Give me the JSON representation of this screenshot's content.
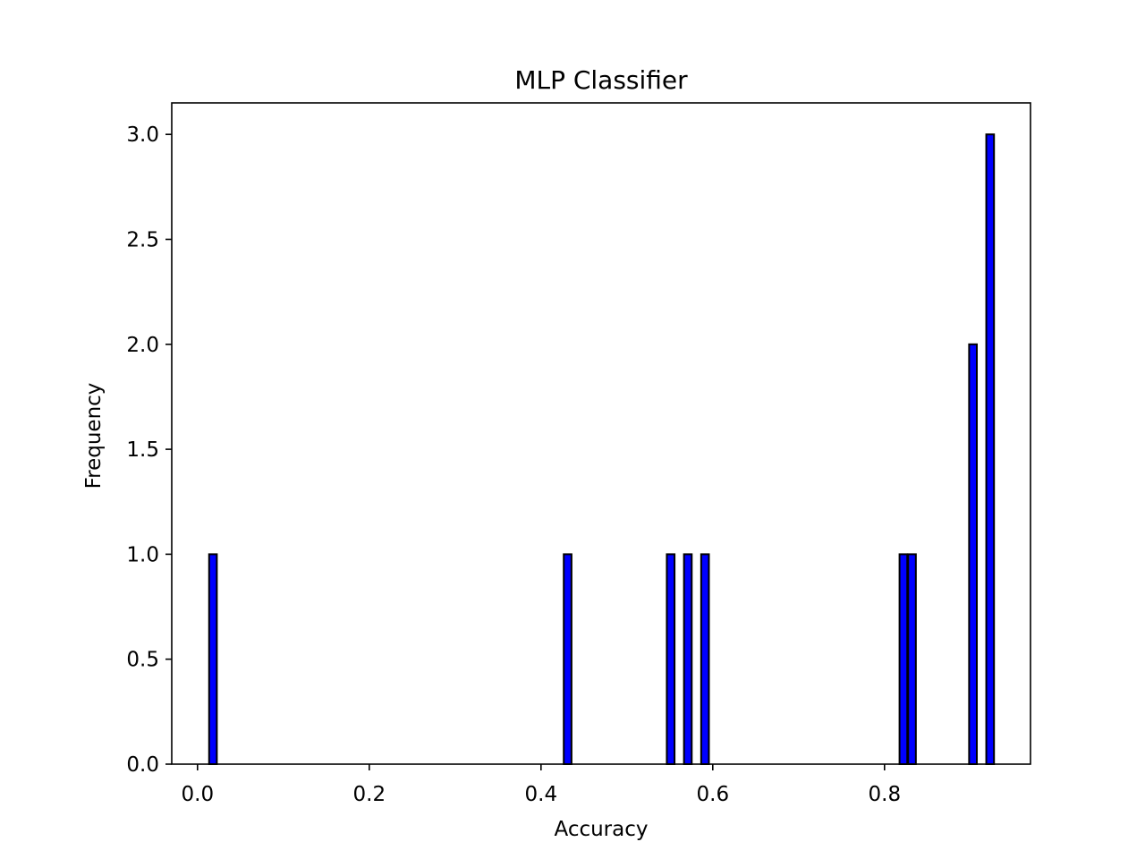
{
  "chart_data": {
    "type": "bar",
    "title": "MLP Classifier",
    "xlabel": "Accuracy",
    "ylabel": "Frequency",
    "xlim": [
      -0.03,
      0.97
    ],
    "ylim": [
      0,
      3.15
    ],
    "xticks": [
      0.0,
      0.2,
      0.4,
      0.6,
      0.8
    ],
    "xtick_labels": [
      "0.0",
      "0.2",
      "0.4",
      "0.6",
      "0.8"
    ],
    "yticks": [
      0.0,
      0.5,
      1.0,
      1.5,
      2.0,
      2.5,
      3.0
    ],
    "ytick_labels": [
      "0.0",
      "0.5",
      "1.0",
      "1.5",
      "2.0",
      "2.5",
      "3.0"
    ],
    "bin_width": 0.009,
    "bars": [
      {
        "x": 0.018,
        "value": 1
      },
      {
        "x": 0.431,
        "value": 1
      },
      {
        "x": 0.551,
        "value": 1
      },
      {
        "x": 0.571,
        "value": 1
      },
      {
        "x": 0.591,
        "value": 1
      },
      {
        "x": 0.822,
        "value": 1
      },
      {
        "x": 0.832,
        "value": 1
      },
      {
        "x": 0.903,
        "value": 2
      },
      {
        "x": 0.923,
        "value": 3
      }
    ],
    "bar_color": "#0000ff",
    "edge_color": "#000000",
    "grid": false,
    "legend": "none"
  }
}
